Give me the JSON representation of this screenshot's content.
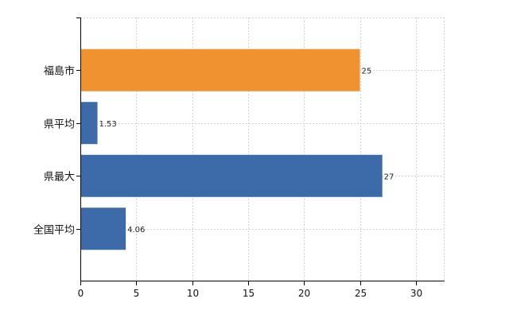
{
  "chart_data": {
    "type": "bar",
    "orientation": "horizontal",
    "categories": [
      "福島市",
      "県平均",
      "県最大",
      "全国平均"
    ],
    "values": [
      25,
      1.53,
      27,
      4.06
    ],
    "value_labels": [
      "25",
      "1.53",
      "27",
      "4.06"
    ],
    "bar_colors": [
      "#f0922f",
      "#3d6aa9",
      "#3d6aa9",
      "#3d6aa9"
    ],
    "xlim": [
      0,
      32.5
    ],
    "xticks": [
      0,
      5,
      10,
      15,
      20,
      25,
      30
    ],
    "grid": true,
    "title": "",
    "xlabel": "",
    "ylabel": ""
  }
}
